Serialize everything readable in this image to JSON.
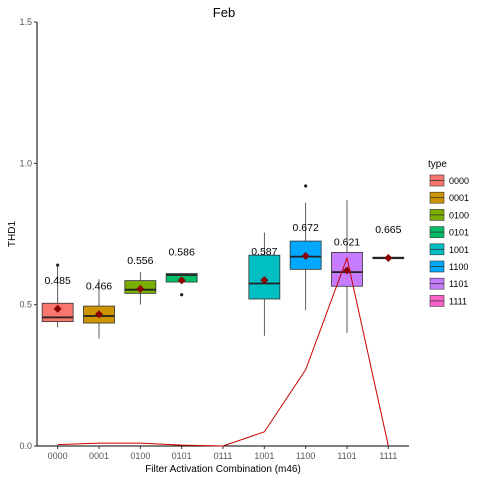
{
  "chart_data": {
    "type": "box",
    "title": "Feb",
    "xlabel": "Filter Activation Combination (m46)",
    "ylabel": "THD1",
    "ylim": [
      0,
      1.5
    ],
    "yticks": [
      "0.0",
      "0.5",
      "1.0",
      "1.5"
    ],
    "yticks_values": [
      0,
      0.5,
      1.0,
      1.5
    ],
    "categories": [
      "0000",
      "0001",
      "0100",
      "0101",
      "0111",
      "1001",
      "1100",
      "1101",
      "1111"
    ],
    "legend": {
      "title": "type",
      "position": "right",
      "entries": [
        "0000",
        "0001",
        "0100",
        "0101",
        "1001",
        "1100",
        "1101",
        "1111"
      ]
    },
    "boxes": [
      {
        "category": "0000",
        "type": "0000",
        "color": "#F8766D",
        "whisker_low": 0.42,
        "q1": 0.44,
        "median": 0.455,
        "q3": 0.505,
        "whisker_high": 0.64,
        "outliers": [
          0.64
        ],
        "mean": 0.485,
        "mean_label": "0.485"
      },
      {
        "category": "0001",
        "type": "0001",
        "color": "#CD9600",
        "whisker_low": 0.38,
        "q1": 0.435,
        "median": 0.46,
        "q3": 0.495,
        "whisker_high": 0.59,
        "outliers": [],
        "mean": 0.466,
        "mean_label": "0.466"
      },
      {
        "category": "0100",
        "type": "0100",
        "color": "#7CAE00",
        "whisker_low": 0.5,
        "q1": 0.54,
        "median": 0.553,
        "q3": 0.585,
        "whisker_high": 0.615,
        "outliers": [],
        "mean": 0.556,
        "mean_label": "0.556"
      },
      {
        "category": "0101",
        "type": "0101",
        "color": "#00BE67",
        "whisker_low": 0.58,
        "q1": 0.58,
        "median": 0.605,
        "q3": 0.61,
        "whisker_high": 0.61,
        "outliers": [
          0.535
        ],
        "mean": 0.586,
        "mean_label": "0.586"
      },
      {
        "category": "1001",
        "type": "1001",
        "color": "#00BFC4",
        "whisker_low": 0.39,
        "q1": 0.52,
        "median": 0.575,
        "q3": 0.675,
        "whisker_high": 0.755,
        "outliers": [],
        "mean": 0.587,
        "mean_label": "0.587"
      },
      {
        "category": "1100",
        "type": "1100",
        "color": "#00A9FF",
        "whisker_low": 0.48,
        "q1": 0.625,
        "median": 0.67,
        "q3": 0.725,
        "whisker_high": 0.86,
        "outliers": [
          0.92
        ],
        "mean": 0.672,
        "mean_label": "0.672"
      },
      {
        "category": "1101",
        "type": "1101",
        "color": "#C77CFF",
        "whisker_low": 0.4,
        "q1": 0.565,
        "median": 0.615,
        "q3": 0.685,
        "whisker_high": 0.87,
        "outliers": [],
        "mean": 0.621,
        "mean_label": "0.621"
      },
      {
        "category": "1111",
        "type": "1111",
        "color": "#FF61CC",
        "whisker_low": 0.665,
        "q1": 0.665,
        "median": 0.665,
        "q3": 0.668,
        "whisker_high": 0.668,
        "outliers": [],
        "mean": 0.665,
        "mean_label": "0.665"
      }
    ],
    "mean_color": "#8B0000",
    "line": {
      "color": "#CC0000",
      "values": [
        0.005,
        0.01,
        0.01,
        0.003,
        0.0,
        0.05,
        0.27,
        0.665,
        0.0
      ]
    }
  }
}
